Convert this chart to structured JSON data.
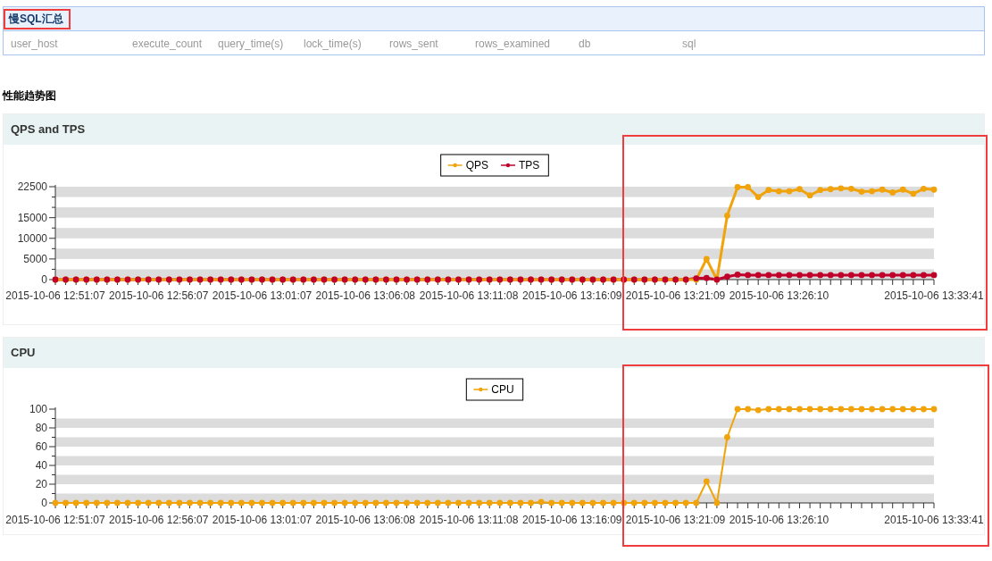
{
  "chart_data": [
    {
      "type": "other",
      "title": "慢SQL汇总",
      "categories": [
        "user_host",
        "execute_count",
        "query_time(s)",
        "lock_time(s)",
        "rows_sent",
        "rows_examined",
        "db",
        "sql"
      ],
      "annotations": [
        "性能趋势图"
      ]
    },
    {
      "type": "line",
      "title": "QPS and TPS",
      "legend": "top",
      "marker": "circle",
      "categories": [
        "2015-10-06 12:51:07",
        null,
        null,
        null,
        null,
        null,
        null,
        null,
        null,
        null,
        "2015-10-06 12:56:07",
        null,
        null,
        null,
        null,
        null,
        null,
        null,
        null,
        null,
        "2015-10-06 13:01:07",
        null,
        null,
        null,
        null,
        null,
        null,
        null,
        null,
        null,
        "2015-10-06 13:06:08",
        null,
        null,
        null,
        null,
        null,
        null,
        null,
        null,
        null,
        "2015-10-06 13:11:08",
        null,
        null,
        null,
        null,
        null,
        null,
        null,
        null,
        null,
        "2015-10-06 13:16:09",
        null,
        null,
        null,
        null,
        null,
        null,
        null,
        null,
        null,
        "2015-10-06 13:21:09",
        null,
        null,
        null,
        null,
        null,
        null,
        null,
        null,
        null,
        "2015-10-06 13:26:10",
        null,
        null,
        null,
        null,
        null,
        null,
        null,
        null,
        null,
        null,
        null,
        null,
        null,
        null,
        "2015-10-06 13:33:41"
      ],
      "ylim": [
        0,
        22500
      ],
      "yticks": [
        0,
        {
          "value": 2500,
          "label": null
        },
        5000,
        {
          "value": 7500,
          "label": null
        },
        10000,
        {
          "value": 12500,
          "label": null
        },
        15000,
        {
          "value": 17500,
          "label": null
        },
        {
          "value": 20000,
          "label": null
        },
        22500
      ],
      "bands": [
        {
          "axis": "y",
          "from": 0,
          "to": 2500,
          "color": "#dcdcdc"
        },
        {
          "axis": "y",
          "from": 5000,
          "to": 7500,
          "color": "#dcdcdc"
        },
        {
          "axis": "y",
          "from": 10000,
          "to": 12500,
          "color": "#dcdcdc"
        },
        {
          "axis": "y",
          "from": 15000,
          "to": 17500,
          "color": "#dcdcdc"
        },
        {
          "axis": "y",
          "from": 20000,
          "to": 22500,
          "color": "#dcdcdc"
        }
      ],
      "series": [
        {
          "name": "QPS",
          "color": "#f0a30a",
          "values": [
            0,
            0,
            0,
            0,
            0,
            0,
            0,
            0,
            0,
            0,
            0,
            0,
            0,
            0,
            0,
            0,
            0,
            0,
            0,
            0,
            0,
            0,
            0,
            0,
            0,
            0,
            0,
            0,
            0,
            0,
            0,
            0,
            0,
            0,
            0,
            0,
            0,
            0,
            0,
            0,
            0,
            0,
            0,
            0,
            0,
            0,
            0,
            0,
            0,
            0,
            0,
            0,
            0,
            0,
            0,
            0,
            0,
            0,
            0,
            0,
            0,
            0,
            0,
            5000,
            0,
            15500,
            22400,
            22400,
            20000,
            21700,
            21400,
            21400,
            21900,
            20400,
            21700,
            21900,
            22100,
            22000,
            21300,
            21400,
            21800,
            21100,
            21800,
            20800,
            22000,
            21800
          ]
        },
        {
          "name": "TPS",
          "color": "#c0002a",
          "values": [
            0,
            0,
            0,
            0,
            0,
            0,
            0,
            0,
            0,
            0,
            0,
            0,
            0,
            0,
            0,
            0,
            0,
            0,
            0,
            0,
            0,
            0,
            0,
            0,
            0,
            0,
            0,
            0,
            0,
            0,
            0,
            0,
            0,
            0,
            0,
            0,
            0,
            0,
            0,
            0,
            0,
            0,
            0,
            0,
            0,
            0,
            0,
            0,
            0,
            0,
            0,
            0,
            0,
            0,
            0,
            0,
            0,
            0,
            0,
            0,
            0,
            0,
            300,
            400,
            0,
            700,
            1200,
            1100,
            1100,
            1100,
            1100,
            1100,
            1100,
            1100,
            1100,
            1100,
            1100,
            1100,
            1100,
            1100,
            1100,
            1100,
            1100,
            1100,
            1100,
            1100
          ]
        }
      ]
    },
    {
      "type": "line",
      "title": "CPU",
      "legend": "top",
      "marker": "circle",
      "categories": [
        "2015-10-06 12:51:07",
        null,
        null,
        null,
        null,
        null,
        null,
        null,
        null,
        null,
        "2015-10-06 12:56:07",
        null,
        null,
        null,
        null,
        null,
        null,
        null,
        null,
        null,
        "2015-10-06 13:01:07",
        null,
        null,
        null,
        null,
        null,
        null,
        null,
        null,
        null,
        "2015-10-06 13:06:08",
        null,
        null,
        null,
        null,
        null,
        null,
        null,
        null,
        null,
        "2015-10-06 13:11:08",
        null,
        null,
        null,
        null,
        null,
        null,
        null,
        null,
        null,
        "2015-10-06 13:16:09",
        null,
        null,
        null,
        null,
        null,
        null,
        null,
        null,
        null,
        "2015-10-06 13:21:09",
        null,
        null,
        null,
        null,
        null,
        null,
        null,
        null,
        null,
        "2015-10-06 13:26:10",
        null,
        null,
        null,
        null,
        null,
        null,
        null,
        null,
        null,
        null,
        null,
        null,
        null,
        null,
        "2015-10-06 13:33:41"
      ],
      "ylim": [
        0,
        100
      ],
      "yticks": [
        0,
        {
          "value": 10,
          "label": null
        },
        20,
        {
          "value": 30,
          "label": null
        },
        40,
        {
          "value": 50,
          "label": null
        },
        60,
        {
          "value": 70,
          "label": null
        },
        80,
        {
          "value": 90,
          "label": null
        },
        100
      ],
      "bands": [
        {
          "axis": "y",
          "from": 0,
          "to": 10,
          "color": "#dcdcdc"
        },
        {
          "axis": "y",
          "from": 20,
          "to": 30,
          "color": "#dcdcdc"
        },
        {
          "axis": "y",
          "from": 40,
          "to": 50,
          "color": "#dcdcdc"
        },
        {
          "axis": "y",
          "from": 60,
          "to": 70,
          "color": "#dcdcdc"
        },
        {
          "axis": "y",
          "from": 80,
          "to": 90,
          "color": "#dcdcdc"
        }
      ],
      "series": [
        {
          "name": "CPU",
          "color": "#f0a30a",
          "values": [
            0,
            0,
            0,
            0,
            0,
            0,
            0,
            0,
            0,
            0,
            0,
            0,
            0,
            0,
            0,
            0,
            0,
            0,
            0,
            0,
            0,
            0,
            0,
            0,
            0,
            0,
            0,
            0,
            0,
            0,
            0,
            0,
            0,
            0,
            0,
            0,
            0,
            0,
            0,
            0,
            0,
            0,
            0,
            0,
            0,
            0,
            0,
            1,
            0,
            0,
            0,
            0,
            0,
            0,
            0,
            0,
            0,
            0,
            0,
            0,
            0,
            0,
            0,
            23,
            0,
            70,
            100,
            100,
            99,
            100,
            100,
            100,
            100,
            100,
            100,
            100,
            100,
            100,
            100,
            100,
            100,
            100,
            100,
            100,
            100,
            100
          ]
        }
      ]
    }
  ]
}
